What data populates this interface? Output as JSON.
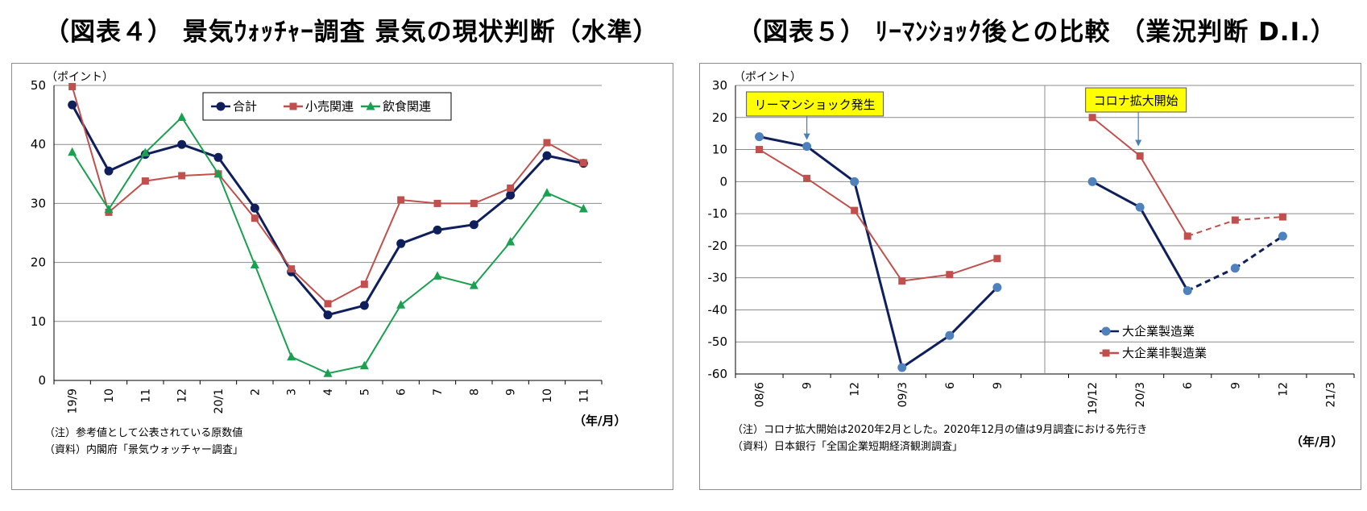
{
  "chart1": {
    "title": "（図表４） 景気ｳｫｯﾁｬｰ調査 景気の現状判断（水準）",
    "unit_label": "（ポイント）",
    "xunit": "（年/月）",
    "note1": "（注）参考値として公表されている原数値",
    "note2": "（資料）内閣府「景気ウォッチャー調査」"
  },
  "chart2": {
    "title": "（図表５） ﾘｰﾏﾝｼｮｯｸ後との比較 （業況判断 D.I.）",
    "unit_label": "（ポイント）",
    "xunit": "（年/月）",
    "note1": "（注）コロナ拡大開始は2020年2月とした。2020年12月の値は9月調査における先行き",
    "note2": "（資料）日本銀行「全国企業短期経済観測調査」",
    "callout_lehman": "リーマンショック発生",
    "callout_corona": "コロナ拡大開始"
  },
  "colors": {
    "navy": "#0f1f5c",
    "red": "#c0504d",
    "green": "#1aa050",
    "callout_bg": "#ffff00",
    "arrow": "#4a7ebb",
    "grid": "#8c8c8c",
    "marker2": "#4f81bd"
  },
  "chart_data": [
    {
      "type": "line",
      "categories": [
        "19/9",
        "10",
        "11",
        "12",
        "20/1",
        "2",
        "3",
        "4",
        "5",
        "6",
        "7",
        "8",
        "9",
        "10",
        "11"
      ],
      "series": [
        {
          "name": "合計",
          "values": [
            46.7,
            35.5,
            38.3,
            40.0,
            37.8,
            29.2,
            18.4,
            11.1,
            12.7,
            23.2,
            25.5,
            26.4,
            31.4,
            38.1,
            36.8
          ],
          "color": "#0f1f5c",
          "marker": "circle"
        },
        {
          "name": "小売関連",
          "values": [
            49.8,
            28.5,
            33.8,
            34.7,
            35.0,
            27.5,
            18.9,
            13.0,
            16.3,
            30.6,
            30.0,
            30.0,
            32.6,
            40.3,
            36.9
          ],
          "color": "#c0504d",
          "marker": "square"
        },
        {
          "name": "飲食関連",
          "values": [
            38.7,
            29.0,
            38.6,
            44.6,
            35.0,
            19.6,
            4.0,
            1.2,
            2.5,
            12.8,
            17.7,
            16.1,
            23.5,
            31.8,
            29.1
          ],
          "color": "#1aa050",
          "marker": "triangle"
        }
      ],
      "xlabel": "（年/月）",
      "ylabel": "（ポイント）",
      "ylim": [
        0,
        50
      ],
      "yticks": [
        0,
        10,
        20,
        30,
        40,
        50
      ],
      "grid": true,
      "legend": "top-right"
    },
    {
      "type": "line",
      "categories": [
        "08/6",
        "9",
        "12",
        "09/3",
        "6",
        "9",
        "",
        "19/12",
        "20/3",
        "6",
        "9",
        "12",
        "21/3"
      ],
      "series": [
        {
          "name": "大企業製造業",
          "values": [
            14,
            11,
            0,
            -58,
            -48,
            -33,
            null,
            0,
            -8,
            -34,
            -27,
            -17,
            null
          ],
          "color": "#0f1f5c",
          "marker": "circle",
          "dashed_from_index": 10
        },
        {
          "name": "大企業非製造業",
          "values": [
            10,
            1,
            -9,
            -31,
            -29,
            -24,
            null,
            20,
            8,
            -17,
            -12,
            -11,
            null
          ],
          "color": "#c0504d",
          "marker": "square",
          "dashed_from_index": 10
        }
      ],
      "xlabel": "（年/月）",
      "ylabel": "（ポイント）",
      "ylim": [
        -60,
        30
      ],
      "yticks": [
        -60,
        -50,
        -40,
        -30,
        -20,
        -10,
        0,
        10,
        20,
        30
      ],
      "grid": true,
      "legend": "bottom-right"
    }
  ]
}
